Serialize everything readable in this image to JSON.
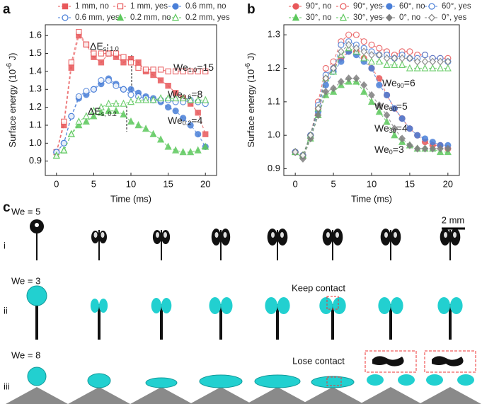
{
  "chart_data": [
    {
      "type": "line",
      "panel_label": "a",
      "y_label": {
        "text": "Surface energy (10",
        "sup": "-6",
        "after": " J)"
      },
      "x_label": "Time (ms)",
      "x": [
        0,
        1,
        2,
        3,
        4,
        5,
        6,
        7,
        8,
        9,
        10,
        11,
        12,
        13,
        14,
        15,
        16,
        17,
        18,
        19,
        20
      ],
      "xlim": [
        -1.5,
        21.5
      ],
      "xticks": [
        0,
        5,
        10,
        15,
        20
      ],
      "ylim": [
        0.82,
        1.66
      ],
      "yticks": [
        0.9,
        {
          "value": 1,
          "label": "1.0"
        },
        1.1,
        1.2,
        1.3,
        1.4,
        1.5,
        1.6
      ],
      "series": [
        {
          "name": "1 mm, no",
          "color": "#e8585a",
          "marker": "square",
          "filled": true,
          "values": [
            0.95,
            1.1,
            1.42,
            1.6,
            1.55,
            1.48,
            1.45,
            1.5,
            1.48,
            1.45,
            1.47,
            1.45,
            1.4,
            1.38,
            1.35,
            1.32,
            1.28,
            1.25,
            1.22,
            1.17,
            1.05
          ]
        },
        {
          "name": "1 mm, yes",
          "color": "#e8585a",
          "marker": "square",
          "filled": false,
          "values": [
            0.95,
            1.12,
            1.45,
            1.62,
            1.55,
            1.5,
            1.5,
            1.5,
            1.5,
            1.48,
            1.45,
            1.42,
            1.41,
            1.41,
            1.41,
            1.4,
            1.4,
            1.4,
            1.4,
            1.4,
            1.4
          ]
        },
        {
          "name": "0.6 mm, no",
          "color": "#4a7fd8",
          "marker": "circle",
          "filled": true,
          "values": [
            0.95,
            1.0,
            1.15,
            1.25,
            1.27,
            1.3,
            1.33,
            1.36,
            1.33,
            1.3,
            1.3,
            1.28,
            1.26,
            1.25,
            1.23,
            1.2,
            1.18,
            1.14,
            1.1,
            1.05,
            0.98
          ]
        },
        {
          "name": "0.6 mm, yes",
          "color": "#4a7fd8",
          "marker": "circle",
          "filled": false,
          "values": [
            0.95,
            1.0,
            1.15,
            1.26,
            1.29,
            1.3,
            1.35,
            1.35,
            1.32,
            1.3,
            1.27,
            1.26,
            1.25,
            1.24,
            1.24,
            1.24,
            1.23,
            1.23,
            1.24,
            1.23,
            1.22
          ]
        },
        {
          "name": "0.2 mm, no",
          "color": "#5cc85c",
          "marker": "triangle",
          "filled": true,
          "values": [
            0.93,
            0.96,
            1.05,
            1.1,
            1.12,
            1.15,
            1.17,
            1.18,
            1.18,
            1.16,
            1.12,
            1.1,
            1.08,
            1.05,
            1.02,
            0.98,
            0.96,
            0.95,
            0.95,
            0.96,
            0.98
          ]
        },
        {
          "name": "0.2 mm, yes",
          "color": "#5cc85c",
          "marker": "triangle",
          "filled": false,
          "values": [
            0.93,
            0.96,
            1.05,
            1.12,
            1.15,
            1.18,
            1.2,
            1.22,
            1.22,
            1.22,
            1.23,
            1.24,
            1.24,
            1.24,
            1.25,
            1.25,
            1.25,
            1.25,
            1.24,
            1.24,
            1.24
          ]
        }
      ],
      "annotations": [
        {
          "text": "ΔE",
          "sub": "s, 1.0"
        },
        {
          "text": "We",
          "sub": "1.0",
          "after": "=15"
        },
        {
          "text": "We",
          "sub": "0.6",
          "after": "=8"
        },
        {
          "text": "ΔE",
          "sub": "s, 0.2"
        },
        {
          "text": "We",
          "sub": "0.2",
          "after": "=4"
        }
      ]
    },
    {
      "type": "line",
      "panel_label": "b",
      "y_label": {
        "text": "Surface energy (10",
        "sup": "-6",
        "after": " J)"
      },
      "x_label": "Time (ms)",
      "x": [
        0,
        1,
        2,
        3,
        4,
        5,
        6,
        7,
        8,
        9,
        10,
        11,
        12,
        13,
        14,
        15,
        16,
        17,
        18,
        19,
        20
      ],
      "xlim": [
        -1.5,
        21.5
      ],
      "xticks": [
        0,
        5,
        10,
        15,
        20
      ],
      "ylim": [
        0.88,
        1.33
      ],
      "yticks": [
        0.9,
        {
          "value": 1,
          "label": "1.0"
        },
        1.1,
        1.2,
        1.3
      ],
      "series": [
        {
          "name": "90°, no",
          "color": "#e8585a",
          "marker": "circle",
          "filled": true,
          "values": [
            0.95,
            0.94,
            1.0,
            1.08,
            1.17,
            1.2,
            1.23,
            1.25,
            1.25,
            1.23,
            1.2,
            1.17,
            1.12,
            1.08,
            1.05,
            1.02,
            1.0,
            0.98,
            0.97,
            0.97,
            0.96
          ]
        },
        {
          "name": "90°, yes",
          "color": "#e8585a",
          "marker": "circle",
          "filled": false,
          "values": [
            0.95,
            0.94,
            1.0,
            1.1,
            1.2,
            1.22,
            1.28,
            1.3,
            1.3,
            1.28,
            1.27,
            1.26,
            1.25,
            1.24,
            1.25,
            1.25,
            1.24,
            1.24,
            1.23,
            1.23,
            1.23
          ]
        },
        {
          "name": "60°, no",
          "color": "#4a7fd8",
          "marker": "circle",
          "filled": true,
          "values": [
            0.95,
            0.94,
            1.0,
            1.07,
            1.15,
            1.19,
            1.22,
            1.25,
            1.24,
            1.22,
            1.2,
            1.15,
            1.12,
            1.08,
            1.05,
            1.02,
            1.0,
            0.99,
            0.98,
            0.97,
            0.97
          ]
        },
        {
          "name": "60°, yes",
          "color": "#4a7fd8",
          "marker": "circle",
          "filled": false,
          "values": [
            0.95,
            0.94,
            1.0,
            1.09,
            1.18,
            1.2,
            1.27,
            1.28,
            1.27,
            1.26,
            1.25,
            1.24,
            1.24,
            1.23,
            1.24,
            1.23,
            1.23,
            1.24,
            1.23,
            1.23,
            1.22
          ]
        },
        {
          "name": "30°, no",
          "color": "#5cc85c",
          "marker": "triangle",
          "filled": true,
          "values": [
            0.95,
            0.94,
            0.99,
            1.06,
            1.12,
            1.13,
            1.15,
            1.16,
            1.16,
            1.13,
            1.1,
            1.07,
            1.04,
            1.0,
            0.98,
            0.97,
            0.96,
            0.96,
            0.96,
            0.95,
            0.95
          ]
        },
        {
          "name": "30°, yes",
          "color": "#5cc85c",
          "marker": "triangle",
          "filled": false,
          "values": [
            0.95,
            0.94,
            1.0,
            1.08,
            1.17,
            1.19,
            1.24,
            1.26,
            1.25,
            1.23,
            1.22,
            1.22,
            1.21,
            1.21,
            1.21,
            1.2,
            1.2,
            1.2,
            1.2,
            1.2,
            1.2
          ]
        },
        {
          "name": "0°, no",
          "color": "#808080",
          "marker": "diamond",
          "filled": true,
          "values": [
            0.95,
            0.93,
            0.99,
            1.06,
            1.13,
            1.14,
            1.16,
            1.17,
            1.17,
            1.15,
            1.12,
            1.09,
            1.06,
            1.02,
            0.99,
            0.97,
            0.96,
            0.96,
            0.96,
            0.96,
            0.96
          ]
        },
        {
          "name": "0°, yes",
          "color": "#808080",
          "marker": "diamond",
          "filled": false,
          "values": [
            0.95,
            0.94,
            1.0,
            1.08,
            1.17,
            1.2,
            1.25,
            1.27,
            1.26,
            1.25,
            1.24,
            1.24,
            1.23,
            1.23,
            1.23,
            1.23,
            1.22,
            1.22,
            1.22,
            1.22,
            1.22
          ]
        }
      ],
      "annotations": [
        {
          "text": "We",
          "sub": "90",
          "after": "=6"
        },
        {
          "text": "We",
          "sub": "60",
          "after": "=5"
        },
        {
          "text": "We",
          "sub": "30",
          "after": "=4"
        },
        {
          "text": "We",
          "sub": "0",
          "after": "=3"
        }
      ]
    }
  ],
  "panel_c": {
    "label": "c",
    "scale_bar": "2 mm",
    "keep_contact": "Keep contact",
    "lose_contact": "Lose contact",
    "rows": [
      {
        "we": "We = 5",
        "roman": "i"
      },
      {
        "we": "We = 3",
        "roman": "ii"
      },
      {
        "we": "We = 8",
        "roman": "iii"
      }
    ]
  }
}
